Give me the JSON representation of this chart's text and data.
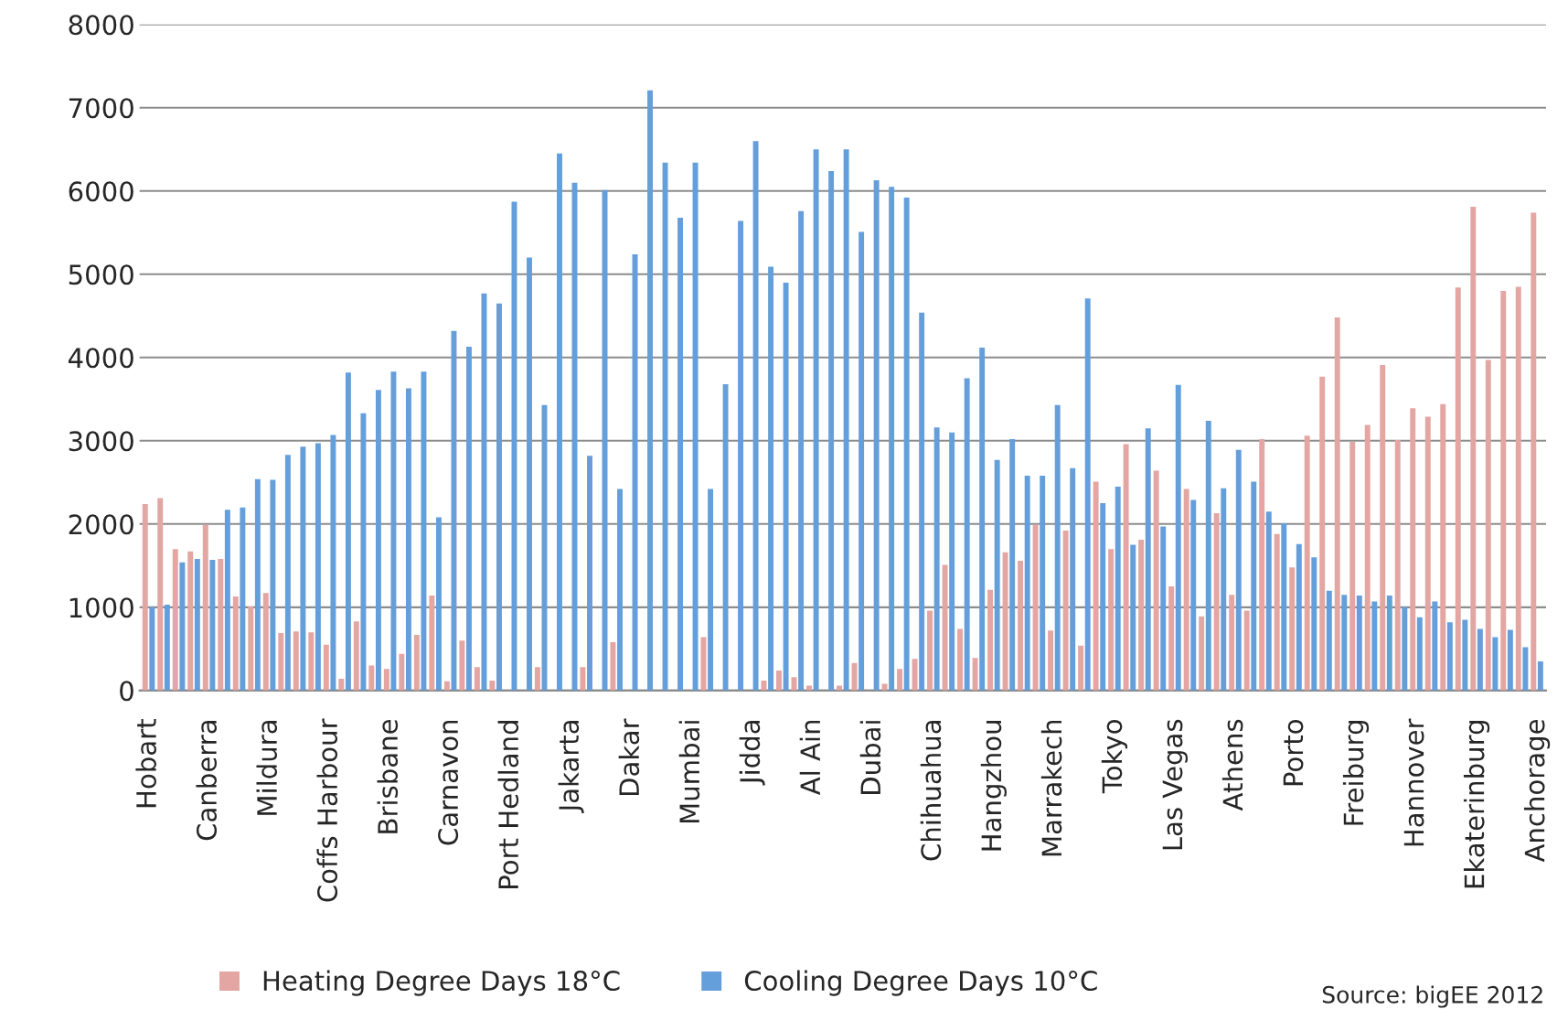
{
  "chart_data": {
    "type": "bar",
    "categories": [
      "Hobart",
      null,
      null,
      null,
      "Canberra",
      null,
      null,
      null,
      "Mildura",
      null,
      null,
      null,
      "Coffs Harbour",
      null,
      null,
      null,
      "Brisbane",
      null,
      null,
      null,
      "Carnavon",
      null,
      null,
      null,
      "Port Hedland",
      null,
      null,
      null,
      "Jakarta",
      null,
      null,
      null,
      "Dakar",
      null,
      null,
      null,
      "Mumbai",
      null,
      null,
      null,
      "Jidda",
      null,
      null,
      null,
      "Al Ain",
      null,
      null,
      null,
      "Dubai",
      null,
      null,
      null,
      "Chihuahua",
      null,
      null,
      null,
      "Hangzhou",
      null,
      null,
      null,
      "Marrakech",
      null,
      null,
      null,
      "Tokyo",
      null,
      null,
      null,
      "Las Vegas",
      null,
      null,
      null,
      "Athens",
      null,
      null,
      null,
      "Porto",
      null,
      null,
      null,
      "Freiburg",
      null,
      null,
      null,
      "Hannover",
      null,
      null,
      null,
      "Ekaterinburg",
      null,
      null,
      null,
      "Anchorage"
    ],
    "series": [
      {
        "name": "Heating Degree Days 18°C",
        "color": "#e3a6a2",
        "values": [
          2240,
          2310,
          1700,
          1670,
          1990,
          1580,
          1130,
          1010,
          1170,
          690,
          710,
          700,
          550,
          140,
          830,
          300,
          260,
          440,
          670,
          1140,
          110,
          600,
          280,
          120,
          0,
          0,
          280,
          0,
          0,
          280,
          0,
          580,
          0,
          0,
          0,
          0,
          0,
          640,
          0,
          0,
          0,
          120,
          240,
          160,
          60,
          0,
          60,
          330,
          0,
          80,
          260,
          380,
          960,
          1510,
          740,
          390,
          1210,
          1660,
          1560,
          1990,
          720,
          1920,
          540,
          2510,
          1700,
          2960,
          1810,
          2640,
          1250,
          2420,
          890,
          2130,
          1150,
          960,
          3020,
          1880,
          1480,
          3060,
          3770,
          4480,
          2990,
          3190,
          3910,
          3010,
          3390,
          3290,
          3440,
          4840,
          5810,
          3970,
          4800,
          4850,
          5740
        ]
      },
      {
        "name": "Cooling Degree Days 10°C",
        "color": "#659fdb",
        "values": [
          1000,
          1030,
          1540,
          1580,
          1570,
          2170,
          2200,
          2540,
          2530,
          2830,
          2930,
          2970,
          3070,
          3820,
          3330,
          3610,
          3830,
          3630,
          3830,
          2080,
          4320,
          4130,
          4770,
          4650,
          5870,
          5200,
          3430,
          6450,
          6100,
          2820,
          6010,
          2420,
          5240,
          7210,
          6340,
          5680,
          6340,
          2420,
          3680,
          5640,
          6600,
          5090,
          4900,
          5760,
          6500,
          6240,
          6500,
          5510,
          6130,
          6050,
          5920,
          4540,
          3160,
          3100,
          3750,
          4120,
          2770,
          3020,
          2580,
          2580,
          3430,
          2670,
          4710,
          2250,
          2450,
          1750,
          3150,
          1970,
          3670,
          2290,
          3240,
          2430,
          2890,
          2510,
          2150,
          2010,
          1760,
          1600,
          1200,
          1150,
          1140,
          1070,
          1140,
          1000,
          880,
          1070,
          820,
          850,
          740,
          640,
          730,
          520,
          350
        ]
      }
    ],
    "ylim": [
      0,
      8000
    ],
    "yticks": [
      0,
      1000,
      2000,
      3000,
      4000,
      5000,
      6000,
      7000,
      8000
    ],
    "grid": "y",
    "legend": "bottom",
    "annotations": [
      "Source: bigEE 2012"
    ]
  }
}
